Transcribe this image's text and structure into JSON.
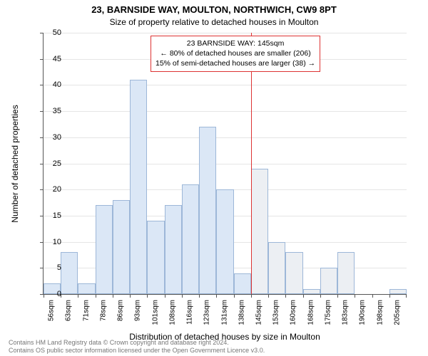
{
  "title": "23, BARNSIDE WAY, MOULTON, NORTHWICH, CW9 8PT",
  "subtitle": "Size of property relative to detached houses in Moulton",
  "ylabel": "Number of detached properties",
  "xlabel": "Distribution of detached houses by size in Moulton",
  "footer_line1": "Contains HM Land Registry data © Crown copyright and database right 2024.",
  "footer_line2": "Contains OS public sector information licensed under the Open Government Licence v3.0.",
  "chart": {
    "type": "histogram",
    "ylim": [
      0,
      50
    ],
    "ytick_step": 5,
    "xtick_labels": [
      "56sqm",
      "63sqm",
      "71sqm",
      "78sqm",
      "86sqm",
      "93sqm",
      "101sqm",
      "108sqm",
      "116sqm",
      "123sqm",
      "131sqm",
      "138sqm",
      "145sqm",
      "153sqm",
      "160sqm",
      "168sqm",
      "175sqm",
      "183sqm",
      "190sqm",
      "198sqm",
      "205sqm"
    ],
    "values": [
      2,
      8,
      2,
      17,
      18,
      41,
      14,
      17,
      21,
      32,
      20,
      4,
      24,
      10,
      8,
      1,
      5,
      8,
      0,
      0,
      1
    ],
    "bar_fill": "#dbe7f6",
    "bar_fill_right": "#eceff3",
    "bar_border": "#9db7d8",
    "split_index": 12,
    "background_color": "#ffffff",
    "grid_color": "#e5e5e5",
    "axis_color": "#555555",
    "ref_line_color": "#d33",
    "bar_gap_ratio": 0.0
  },
  "annotation": {
    "line1": "23 BARNSIDE WAY: 145sqm",
    "line2": "← 80% of detached houses are smaller (206)",
    "line3": "15% of semi-detached houses are larger (38) →"
  }
}
